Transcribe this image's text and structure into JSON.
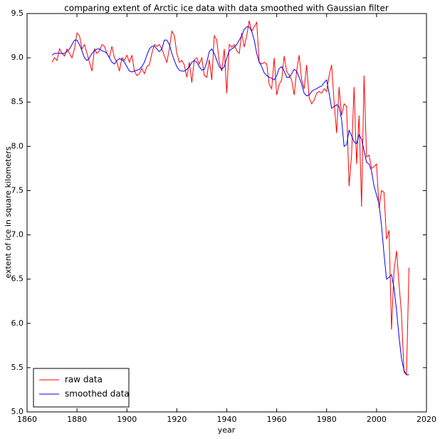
{
  "chart_data": {
    "type": "line",
    "title": "comparing extent of Arctic ice data with data smoothed with Gaussian filter",
    "xlabel": "year",
    "ylabel": "extent of ice in square kilometers",
    "x": [
      1870,
      1871,
      1872,
      1873,
      1874,
      1875,
      1876,
      1877,
      1878,
      1879,
      1880,
      1881,
      1882,
      1883,
      1884,
      1885,
      1886,
      1887,
      1888,
      1889,
      1890,
      1891,
      1892,
      1893,
      1894,
      1895,
      1896,
      1897,
      1898,
      1899,
      1900,
      1901,
      1902,
      1903,
      1904,
      1905,
      1906,
      1907,
      1908,
      1909,
      1910,
      1911,
      1912,
      1913,
      1914,
      1915,
      1916,
      1917,
      1918,
      1919,
      1920,
      1921,
      1922,
      1923,
      1924,
      1925,
      1926,
      1927,
      1928,
      1929,
      1930,
      1931,
      1932,
      1933,
      1934,
      1935,
      1936,
      1937,
      1938,
      1939,
      1940,
      1941,
      1942,
      1943,
      1944,
      1945,
      1946,
      1947,
      1948,
      1949,
      1950,
      1951,
      1952,
      1953,
      1954,
      1955,
      1956,
      1957,
      1958,
      1959,
      1960,
      1961,
      1962,
      1963,
      1964,
      1965,
      1966,
      1967,
      1968,
      1969,
      1970,
      1971,
      1972,
      1973,
      1974,
      1975,
      1976,
      1977,
      1978,
      1979,
      1980,
      1981,
      1982,
      1983,
      1984,
      1985,
      1986,
      1987,
      1988,
      1989,
      1990,
      1991,
      1992,
      1993,
      1994,
      1995,
      1996,
      1997,
      1998,
      1999,
      2000,
      2001,
      2002,
      2003,
      2004,
      2005,
      2006,
      2007,
      2008,
      2009,
      2010,
      2011,
      2012,
      2013
    ],
    "series": [
      {
        "name": "raw data",
        "color": "#ff0000",
        "values": [
          8.95,
          9.0,
          8.97,
          9.1,
          9.05,
          9.02,
          9.1,
          9.05,
          9.0,
          9.1,
          9.28,
          9.25,
          9.1,
          9.15,
          9.05,
          8.95,
          8.85,
          9.1,
          9.05,
          9.08,
          9.15,
          9.13,
          9.05,
          9.0,
          9.13,
          9.0,
          8.95,
          8.85,
          9.0,
          8.97,
          9.03,
          8.95,
          9.03,
          8.85,
          8.8,
          8.82,
          8.88,
          8.82,
          8.9,
          8.92,
          9.05,
          9.15,
          9.13,
          9.15,
          9.1,
          9.02,
          8.95,
          9.1,
          9.3,
          9.25,
          9.05,
          8.95,
          8.97,
          8.92,
          8.78,
          8.95,
          8.72,
          8.98,
          9.0,
          8.93,
          9.0,
          8.8,
          8.78,
          8.98,
          8.75,
          9.25,
          9.2,
          8.95,
          8.85,
          9.1,
          8.6,
          9.15,
          9.12,
          9.15,
          9.08,
          9.05,
          9.28,
          9.12,
          9.25,
          9.42,
          9.3,
          9.35,
          9.4,
          8.95,
          8.93,
          8.95,
          8.93,
          8.7,
          8.65,
          9.0,
          8.58,
          8.7,
          8.75,
          9.02,
          8.85,
          8.8,
          8.75,
          8.58,
          8.85,
          9.03,
          8.75,
          8.65,
          8.92,
          8.55,
          8.48,
          8.52,
          8.6,
          8.62,
          8.6,
          8.65,
          8.62,
          8.8,
          8.92,
          8.5,
          8.15,
          8.67,
          8.35,
          8.48,
          8.45,
          7.55,
          7.9,
          8.67,
          7.8,
          8.35,
          7.32,
          8.8,
          7.88,
          7.9,
          7.75,
          7.77,
          7.8,
          7.3,
          7.5,
          7.48,
          6.95,
          7.05,
          5.93,
          6.6,
          6.82,
          6.45,
          6.1,
          5.45,
          5.42,
          6.63
        ]
      },
      {
        "name": "smoothed data",
        "color": "#0000ff",
        "values": [
          9.03,
          9.05,
          9.05,
          9.05,
          9.05,
          9.05,
          9.07,
          9.1,
          9.15,
          9.2,
          9.2,
          9.15,
          9.08,
          9.0,
          8.97,
          9.0,
          9.05,
          9.08,
          9.1,
          9.1,
          9.08,
          9.07,
          9.05,
          9.0,
          8.95,
          8.93,
          8.97,
          8.99,
          8.98,
          8.95,
          8.9,
          8.85,
          8.84,
          8.85,
          8.86,
          8.87,
          8.9,
          8.95,
          9.03,
          9.1,
          9.13,
          9.13,
          9.1,
          9.07,
          9.1,
          9.2,
          9.2,
          9.15,
          9.05,
          8.97,
          8.9,
          8.86,
          8.85,
          8.85,
          8.87,
          8.9,
          8.95,
          8.97,
          8.95,
          8.9,
          8.86,
          8.87,
          8.95,
          9.07,
          9.1,
          9.05,
          8.97,
          8.9,
          8.87,
          8.9,
          9.0,
          9.08,
          9.1,
          9.12,
          9.15,
          9.2,
          9.25,
          9.32,
          9.35,
          9.35,
          9.3,
          9.2,
          9.05,
          8.95,
          8.9,
          8.83,
          8.8,
          8.78,
          8.77,
          8.75,
          8.8,
          8.88,
          8.9,
          8.85,
          8.78,
          8.78,
          8.82,
          8.87,
          8.85,
          8.78,
          8.7,
          8.6,
          8.57,
          8.58,
          8.62,
          8.64,
          8.65,
          8.67,
          8.68,
          8.72,
          8.75,
          8.6,
          8.43,
          8.45,
          8.47,
          8.45,
          8.3,
          8.0,
          8.02,
          8.18,
          8.12,
          8.05,
          8.03,
          8.13,
          8.08,
          7.95,
          7.82,
          7.8,
          7.72,
          7.55,
          7.45,
          7.35,
          7.1,
          6.78,
          6.5,
          6.52,
          6.55,
          6.4,
          6.15,
          5.85,
          5.6,
          5.47,
          5.42,
          5.42
        ]
      }
    ],
    "xlim": [
      1860,
      2020
    ],
    "xticks": [
      1860,
      1880,
      1900,
      1920,
      1940,
      1960,
      1980,
      2000,
      2020
    ],
    "ylim": [
      5.0,
      9.5
    ],
    "yticks": [
      {
        "value": 5,
        "label": "5.0"
      },
      5.5,
      {
        "value": 6,
        "label": "6.0"
      },
      6.5,
      {
        "value": 7,
        "label": "7.0"
      },
      7.5,
      {
        "value": 8,
        "label": "8.0"
      },
      8.5,
      {
        "value": 9,
        "label": "9.0"
      },
      9.5
    ],
    "legend": "lower left",
    "grid": false
  }
}
